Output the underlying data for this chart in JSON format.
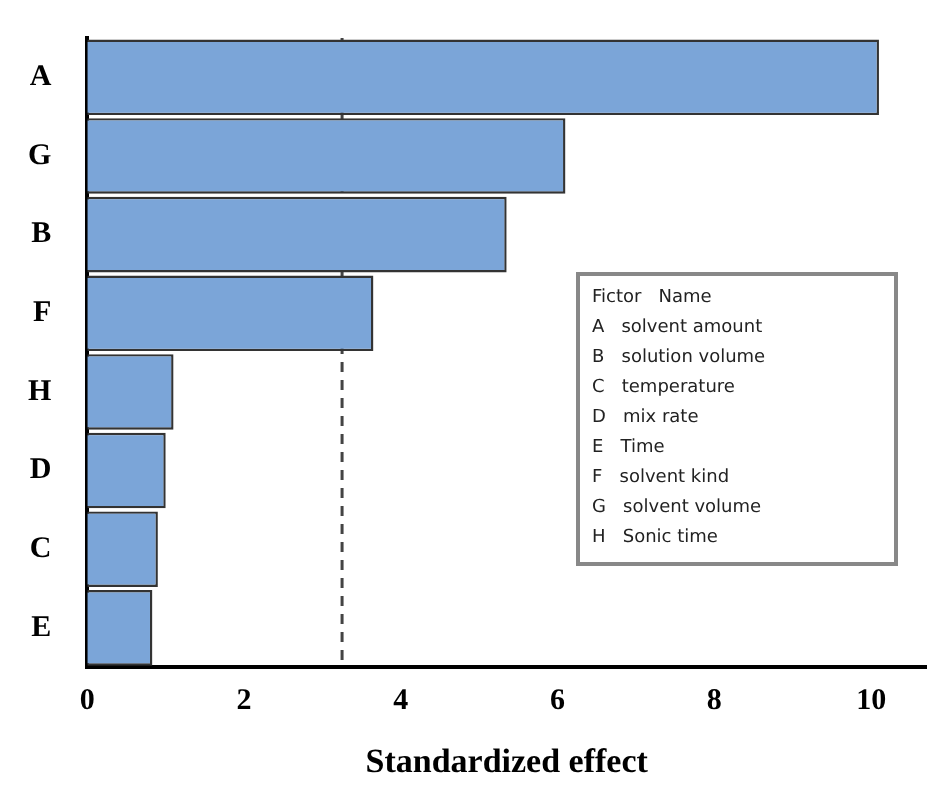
{
  "chart_data": {
    "type": "bar",
    "orientation": "horizontal",
    "xlabel": "Standardized effect",
    "categories": [
      "A",
      "G",
      "B",
      "F",
      "H",
      "D",
      "C",
      "E"
    ],
    "values": [
      10.1,
      6.1,
      5.35,
      3.65,
      1.1,
      1.0,
      0.9,
      0.83
    ],
    "color": "#7ba5d8",
    "xlim": [
      0,
      10.7
    ],
    "xticks": [
      0,
      2,
      4,
      6,
      8,
      10
    ],
    "ref_lines": [
      {
        "axis": "x",
        "value": 3.25,
        "line_style": "dashed",
        "color": "#444444"
      }
    ],
    "grid": false,
    "legend": false,
    "annotations": [
      "Fictor   Name",
      "A   solvent amount",
      "B   solution volume",
      "C   temperature",
      "D   mix rate",
      "E   Time",
      "F   solvent kind",
      "G   solvent volume",
      "H   Sonic time"
    ]
  }
}
